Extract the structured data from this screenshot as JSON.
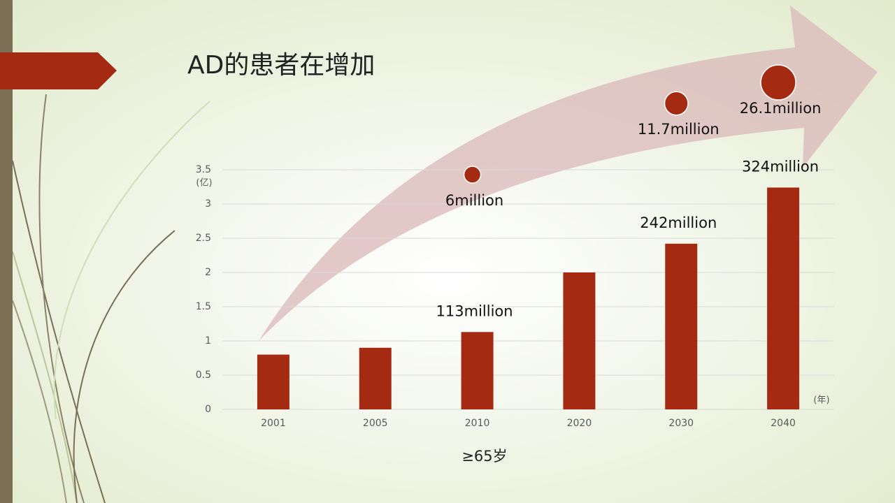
{
  "chart_data": [
    {
      "type": "bar",
      "title": "AD的患者在增加",
      "y_unit_label": "(亿)",
      "x_unit_label": "(年)",
      "x_axis_label": "≥65岁",
      "categories": [
        "2001",
        "2005",
        "2010",
        "2020",
        "2030",
        "2040"
      ],
      "values": [
        0.8,
        0.9,
        1.13,
        2.0,
        2.42,
        3.24
      ],
      "value_labels": [
        null,
        null,
        "113million",
        null,
        "242million",
        "324million"
      ],
      "color": "#a52a12",
      "ylim": [
        0,
        3.5
      ],
      "yticks": [
        0,
        0.5,
        1,
        1.5,
        2,
        2.5,
        3,
        3.5
      ],
      "grid": true
    },
    {
      "type": "bubble",
      "categories": [
        "2010",
        "2030",
        "2040"
      ],
      "values": [
        6,
        11.7,
        26.1
      ],
      "value_labels": [
        "6million",
        "11.7million",
        "26.1million"
      ],
      "color": "#a52a12"
    }
  ]
}
